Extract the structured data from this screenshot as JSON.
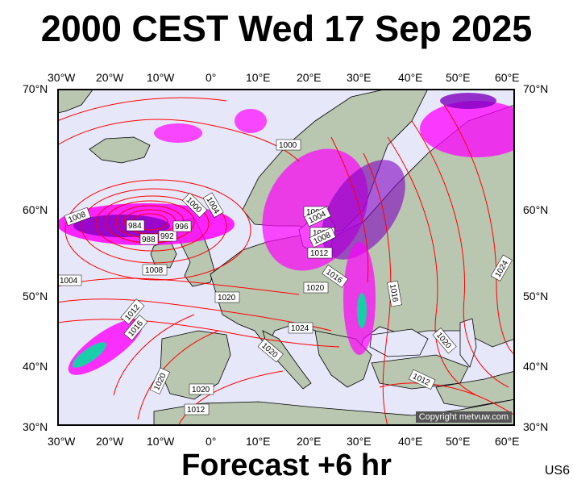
{
  "title": "2000 CEST Wed 17 Sep 2025",
  "subtitle": "Forecast +6 hr",
  "model_code": "US6",
  "copyright": "Copyright metvuw.com",
  "lon_labels": [
    "30°W",
    "20°W",
    "10°W",
    "0°",
    "10°E",
    "20°E",
    "30°E",
    "40°E",
    "50°E",
    "60°E"
  ],
  "lat_labels": [
    "70°N",
    "60°N",
    "50°N",
    "40°N",
    "30°N"
  ],
  "isobar_labels": [
    "1000",
    "1004",
    "984",
    "988",
    "992",
    "996",
    "1000",
    "1004",
    "1008",
    "1008",
    "1004",
    "1012",
    "1016",
    "1008",
    "1020",
    "1004",
    "1008",
    "1012",
    "1016",
    "1020",
    "1024",
    "1016",
    "1020",
    "1012",
    "1020",
    "1020",
    "1020",
    "1012",
    "1024"
  ],
  "colors": {
    "isobar": "#ff0000",
    "sea": "#e6e8fa",
    "land": "#b9c6b0",
    "rain_light": "#ff00ff",
    "rain_heavy": "#8000c0",
    "rain_peak": "#00e0a0"
  }
}
